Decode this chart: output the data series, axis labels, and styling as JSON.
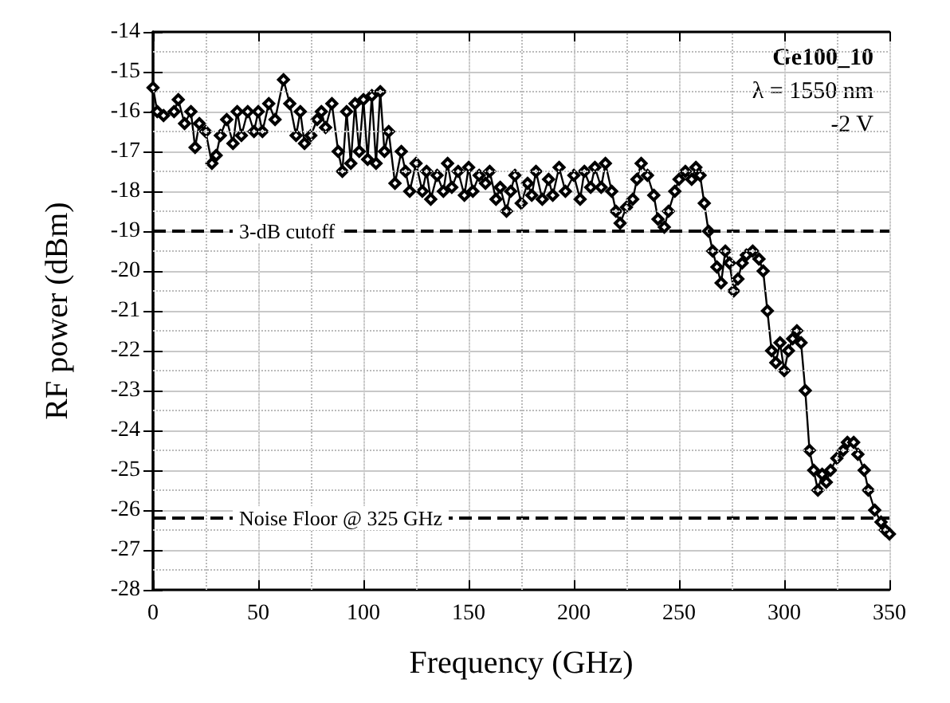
{
  "chart_data": {
    "type": "line",
    "xlabel": "Frequency (GHz)",
    "ylabel": "RF power (dBm)",
    "xlim": [
      0,
      350
    ],
    "xticks": [
      0,
      50,
      100,
      150,
      200,
      250,
      300,
      350
    ],
    "ylim": [
      -28,
      -14
    ],
    "yticks": [
      -28,
      -27,
      -26,
      -25,
      -24,
      -23,
      -22,
      -21,
      -20,
      -19,
      -18,
      -17,
      -16,
      -15,
      -14
    ],
    "grid": true,
    "marker": "diamond",
    "line_style": "solid",
    "annotations": [
      "Ge100_10",
      "λ = 1550 nm",
      "-2 V"
    ],
    "ref_lines": [
      {
        "axis": "y",
        "value": -19,
        "label": "3-dB cutoff",
        "color": "#000000",
        "line_style": "dashed"
      },
      {
        "axis": "y",
        "value": -26.2,
        "label": "Noise Floor @ 325 GHz",
        "color": "#000000",
        "line_style": "dashed"
      }
    ],
    "series": [
      {
        "color": "#000000",
        "x": [
          0,
          2,
          5,
          10,
          12,
          15,
          18,
          20,
          22,
          25,
          28,
          30,
          32,
          35,
          38,
          40,
          42,
          45,
          48,
          50,
          52,
          55,
          58,
          62,
          65,
          68,
          70,
          72,
          75,
          78,
          80,
          82,
          85,
          88,
          90,
          92,
          94,
          96,
          98,
          100,
          102,
          104,
          106,
          108,
          110,
          112,
          115,
          118,
          120,
          122,
          125,
          128,
          130,
          132,
          135,
          138,
          140,
          142,
          145,
          148,
          150,
          152,
          155,
          158,
          160,
          163,
          165,
          168,
          170,
          172,
          175,
          178,
          180,
          182,
          185,
          188,
          190,
          193,
          196,
          200,
          203,
          205,
          208,
          210,
          213,
          215,
          218,
          220,
          222,
          225,
          228,
          230,
          232,
          235,
          238,
          240,
          243,
          245,
          248,
          250,
          253,
          256,
          258,
          260,
          262,
          264,
          266,
          268,
          270,
          272,
          274,
          276,
          278,
          280,
          282,
          285,
          288,
          290,
          292,
          294,
          296,
          298,
          300,
          302,
          304,
          306,
          308,
          310,
          312,
          314,
          316,
          318,
          320,
          322,
          325,
          328,
          330,
          333,
          335,
          338,
          340,
          343,
          346,
          348,
          350
        ],
        "values": [
          -15.4,
          -16.0,
          -16.1,
          -16.0,
          -15.7,
          -16.3,
          -16.0,
          -16.9,
          -16.3,
          -16.5,
          -17.3,
          -17.1,
          -16.6,
          -16.2,
          -16.8,
          -16.0,
          -16.6,
          -16.0,
          -16.5,
          -16.0,
          -16.5,
          -15.8,
          -16.2,
          -15.2,
          -15.8,
          -16.6,
          -16.0,
          -16.8,
          -16.6,
          -16.2,
          -16.0,
          -16.4,
          -15.8,
          -17.0,
          -17.5,
          -16.0,
          -17.3,
          -15.8,
          -17.0,
          -15.7,
          -17.2,
          -15.6,
          -17.3,
          -15.5,
          -17.0,
          -16.5,
          -17.8,
          -17.0,
          -17.5,
          -18.0,
          -17.3,
          -18.0,
          -17.5,
          -18.2,
          -17.6,
          -18.0,
          -17.3,
          -17.9,
          -17.5,
          -18.1,
          -17.4,
          -18.0,
          -17.6,
          -17.8,
          -17.5,
          -18.2,
          -17.9,
          -18.5,
          -18.0,
          -17.6,
          -18.3,
          -17.8,
          -18.1,
          -17.5,
          -18.2,
          -17.7,
          -18.1,
          -17.4,
          -18.0,
          -17.6,
          -18.2,
          -17.5,
          -17.9,
          -17.4,
          -17.9,
          -17.3,
          -18.0,
          -18.5,
          -18.8,
          -18.4,
          -18.2,
          -17.7,
          -17.3,
          -17.6,
          -18.1,
          -18.7,
          -18.9,
          -18.5,
          -18.0,
          -17.7,
          -17.5,
          -17.7,
          -17.4,
          -17.6,
          -18.3,
          -19.0,
          -19.5,
          -19.9,
          -20.3,
          -19.5,
          -19.8,
          -20.5,
          -20.2,
          -19.8,
          -19.6,
          -19.5,
          -19.7,
          -20.0,
          -21.0,
          -22.0,
          -22.3,
          -21.8,
          -22.5,
          -22.0,
          -21.7,
          -21.5,
          -21.8,
          -23.0,
          -24.5,
          -25.0,
          -25.5,
          -25.1,
          -25.3,
          -25.0,
          -24.7,
          -24.5,
          -24.3,
          -24.3,
          -24.6,
          -25.0,
          -25.5,
          -26.0,
          -26.3,
          -26.5,
          -26.6
        ]
      }
    ]
  }
}
